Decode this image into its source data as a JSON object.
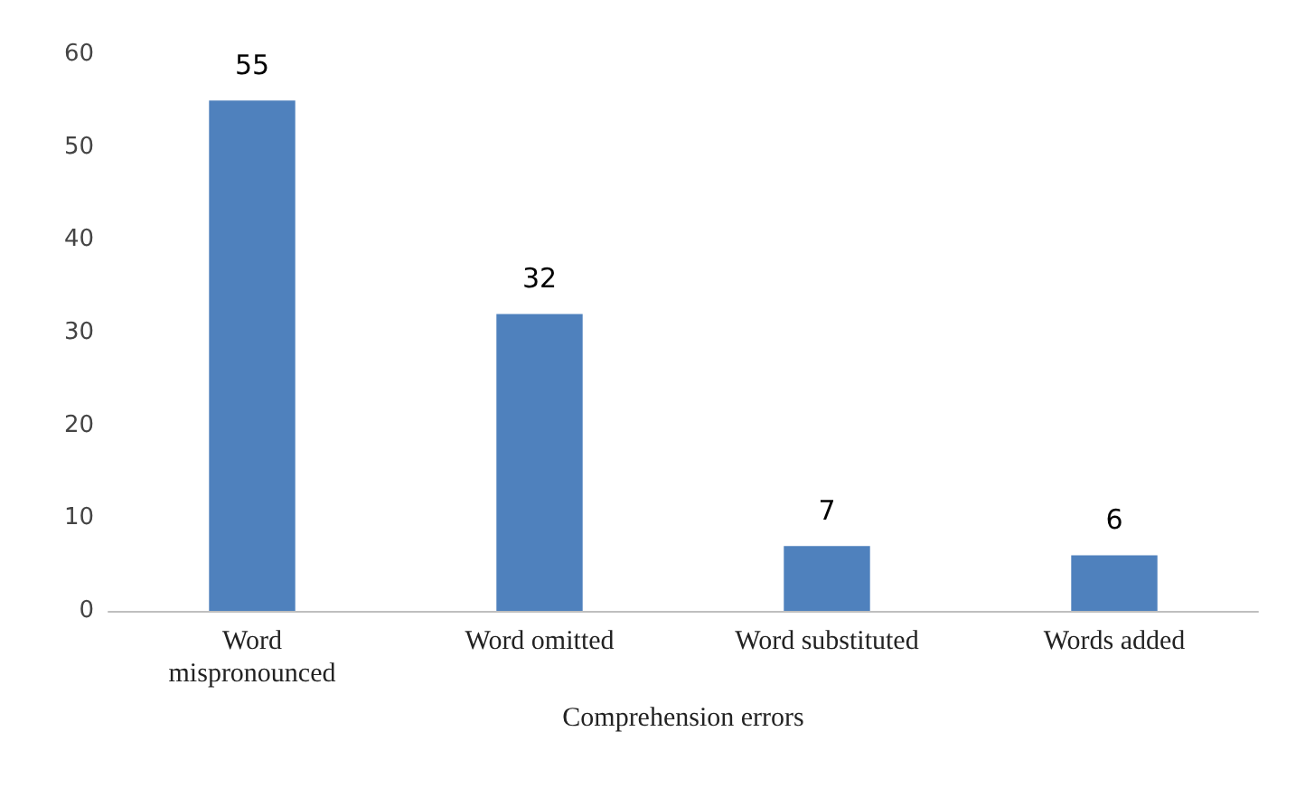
{
  "chart_data": {
    "type": "bar",
    "xlabel": "Comprehension errors",
    "categories": [
      "Word\nmispronounced",
      "Word omitted",
      "Word substituted",
      "Words added"
    ],
    "values": [
      55,
      32,
      7,
      6
    ],
    "color": "#4f81bd",
    "ylim": [
      0,
      60
    ],
    "yticks": [
      0,
      10,
      20,
      30,
      40,
      50,
      60
    ],
    "grid": false,
    "data_labels": true
  }
}
